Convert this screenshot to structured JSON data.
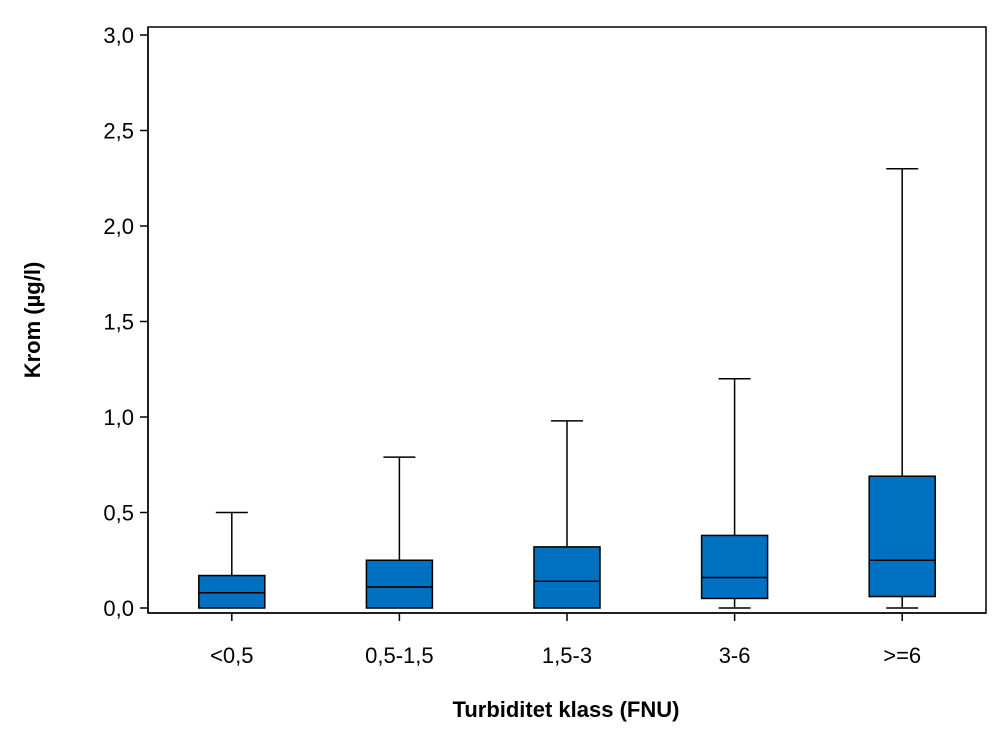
{
  "chart_data": {
    "type": "boxplot",
    "xlabel": "Turbiditet klass (FNU)",
    "ylabel": "Krom (µg/l)",
    "ylim": [
      0,
      3.0
    ],
    "y_ticks": [
      {
        "value": 0.0,
        "label": "0,0"
      },
      {
        "value": 0.5,
        "label": "0,5"
      },
      {
        "value": 1.0,
        "label": "1,0"
      },
      {
        "value": 1.5,
        "label": "1,5"
      },
      {
        "value": 2.0,
        "label": "2,0"
      },
      {
        "value": 2.5,
        "label": "2,5"
      },
      {
        "value": 3.0,
        "label": "3,0"
      }
    ],
    "grid": false,
    "box_color": "#0070C0",
    "categories": [
      "<0,5",
      "0,5-1,5",
      "1,5-3",
      "3-6",
      ">=6"
    ],
    "boxes": [
      {
        "category": "<0,5",
        "whisker_low": 0.0,
        "q1": 0.0,
        "median": 0.08,
        "q3": 0.17,
        "whisker_high": 0.5
      },
      {
        "category": "0,5-1,5",
        "whisker_low": 0.0,
        "q1": 0.0,
        "median": 0.11,
        "q3": 0.25,
        "whisker_high": 0.79
      },
      {
        "category": "1,5-3",
        "whisker_low": 0.0,
        "q1": 0.0,
        "median": 0.14,
        "q3": 0.32,
        "whisker_high": 0.98
      },
      {
        "category": "3-6",
        "whisker_low": 0.0,
        "q1": 0.05,
        "median": 0.16,
        "q3": 0.38,
        "whisker_high": 1.2
      },
      {
        "category": ">=6",
        "whisker_low": 0.0,
        "q1": 0.06,
        "median": 0.25,
        "q3": 0.69,
        "whisker_high": 2.3
      }
    ]
  }
}
